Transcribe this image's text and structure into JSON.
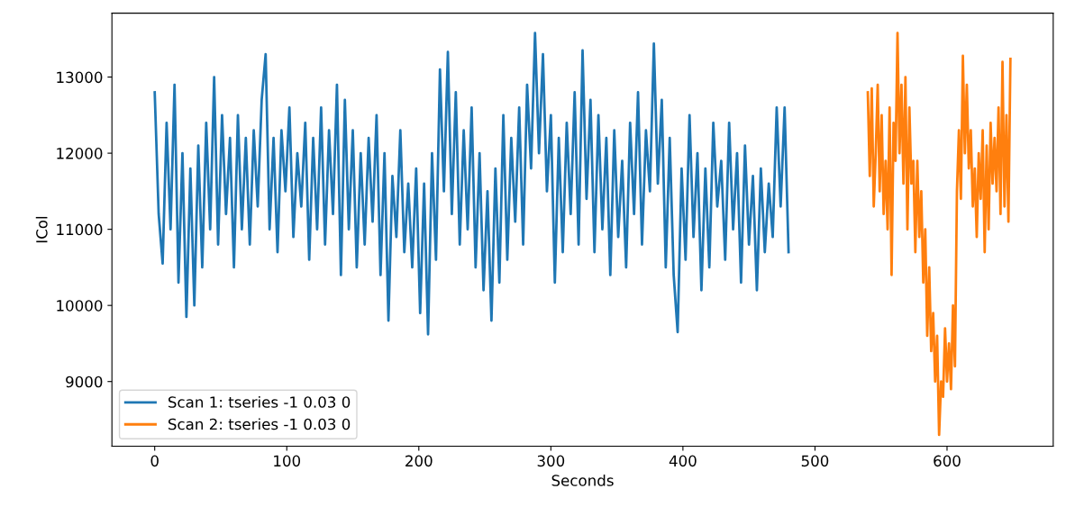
{
  "chart_data": {
    "type": "line",
    "xlabel": "Seconds",
    "ylabel": "ICol",
    "xlim": [
      -32.4,
      680.4
    ],
    "xticks": [
      0,
      100,
      200,
      300,
      400,
      500,
      600
    ],
    "ylim": [
      8150,
      13840
    ],
    "yticks": [
      9000,
      10000,
      11000,
      12000,
      13000
    ],
    "grid": false,
    "legend": "bottom left",
    "marker": "none",
    "line_style": "solid",
    "series": [
      {
        "name": "Scan 1: tseries -1 0.03 0",
        "color": "#1f77b4",
        "x": [
          0,
          3,
          6,
          9,
          12,
          15,
          18,
          21,
          24,
          27,
          30,
          33,
          36,
          39,
          42,
          45,
          48,
          51,
          54,
          57,
          60,
          63,
          66,
          69,
          72,
          75,
          78,
          81,
          84,
          87,
          90,
          93,
          96,
          99,
          102,
          105,
          108,
          111,
          114,
          117,
          120,
          123,
          126,
          129,
          132,
          135,
          138,
          141,
          144,
          147,
          150,
          153,
          156,
          159,
          162,
          165,
          168,
          171,
          174,
          177,
          180,
          183,
          186,
          189,
          192,
          195,
          198,
          201,
          204,
          207,
          210,
          213,
          216,
          219,
          222,
          225,
          228,
          231,
          234,
          237,
          240,
          243,
          246,
          249,
          252,
          255,
          258,
          261,
          264,
          267,
          270,
          273,
          276,
          279,
          282,
          285,
          288,
          291,
          294,
          297,
          300,
          303,
          306,
          309,
          312,
          315,
          318,
          321,
          324,
          327,
          330,
          333,
          336,
          339,
          342,
          345,
          348,
          351,
          354,
          357,
          360,
          363,
          366,
          369,
          372,
          375,
          378,
          381,
          384,
          387,
          390,
          393,
          396,
          399,
          402,
          405,
          408,
          411,
          414,
          417,
          420,
          423,
          426,
          429,
          432,
          435,
          438,
          441,
          444,
          447,
          450,
          453,
          456,
          459,
          462,
          465,
          468,
          471,
          474,
          477,
          480
        ],
        "values": [
          12800,
          11200,
          10550,
          12400,
          11000,
          12900,
          10300,
          12000,
          9850,
          11800,
          10000,
          12100,
          10500,
          12400,
          11000,
          13000,
          10800,
          12500,
          11200,
          12200,
          10500,
          12500,
          11000,
          12200,
          10800,
          12300,
          11300,
          12700,
          13300,
          11000,
          12200,
          10700,
          12300,
          11500,
          12600,
          10900,
          12000,
          11300,
          12400,
          10600,
          12200,
          11000,
          12600,
          10800,
          12300,
          11200,
          12900,
          10400,
          12700,
          11000,
          12300,
          10500,
          12000,
          10800,
          12200,
          11100,
          12500,
          10400,
          12000,
          9800,
          11700,
          10900,
          12300,
          10700,
          11600,
          10500,
          11800,
          9900,
          11600,
          9620,
          12000,
          10600,
          13100,
          11500,
          13330,
          11200,
          12800,
          10800,
          12300,
          11000,
          12600,
          10500,
          12000,
          10200,
          11500,
          9800,
          11800,
          10300,
          12500,
          10600,
          12200,
          11100,
          12600,
          10800,
          12900,
          11800,
          13580,
          12000,
          13300,
          11500,
          12500,
          10300,
          12200,
          10700,
          12400,
          11200,
          12800,
          10800,
          13350,
          11400,
          12700,
          10700,
          12500,
          11000,
          12200,
          10400,
          12300,
          10900,
          11900,
          10500,
          12400,
          11200,
          12800,
          10800,
          12300,
          11500,
          13440,
          11600,
          12700,
          10500,
          12200,
          10400,
          9650,
          11800,
          10600,
          12500,
          10900,
          12000,
          10200,
          11800,
          10500,
          12400,
          11300,
          11900,
          10600,
          12400,
          11000,
          12000,
          10300,
          12100,
          10800,
          11700,
          10200,
          11800,
          10700,
          11600,
          10900,
          12600,
          11300,
          12600,
          10700
        ]
      },
      {
        "name": "Scan 2: tseries -1 0.03 0",
        "color": "#ff7f0e",
        "x": [
          540,
          541.5,
          543,
          544.5,
          546,
          547.5,
          549,
          550.5,
          552,
          553.5,
          555,
          556.5,
          558,
          559.5,
          561,
          562.5,
          564,
          565.5,
          567,
          568.5,
          570,
          571.5,
          573,
          574.5,
          576,
          577.5,
          579,
          580.5,
          582,
          583.5,
          585,
          586.5,
          588,
          589.5,
          591,
          592.5,
          594,
          595.5,
          597,
          598.5,
          600,
          601.5,
          603,
          604.5,
          606,
          607.5,
          609,
          610.5,
          612,
          613.5,
          615,
          616.5,
          618,
          619.5,
          621,
          622.5,
          624,
          625.5,
          627,
          628.5,
          630,
          631.5,
          633,
          634.5,
          636,
          637.5,
          639,
          640.5,
          642,
          643.5,
          645,
          646.5,
          648
        ],
        "values": [
          12800,
          11700,
          12850,
          11300,
          12000,
          12900,
          11500,
          12500,
          11200,
          11900,
          11000,
          12600,
          10400,
          12400,
          11900,
          13580,
          12000,
          12900,
          11600,
          13000,
          11000,
          12600,
          11600,
          11900,
          10700,
          11900,
          10900,
          11500,
          10300,
          11000,
          9600,
          10500,
          9400,
          9900,
          9000,
          9600,
          8300,
          9000,
          8800,
          9700,
          9000,
          9500,
          8900,
          10000,
          9200,
          11500,
          12300,
          11400,
          13280,
          12000,
          12900,
          11800,
          12300,
          11300,
          11800,
          10900,
          12000,
          11400,
          12300,
          10700,
          12100,
          11000,
          12400,
          11600,
          12200,
          11500,
          12600,
          11200,
          13200,
          11300,
          12500,
          11100,
          13240
        ]
      }
    ]
  }
}
